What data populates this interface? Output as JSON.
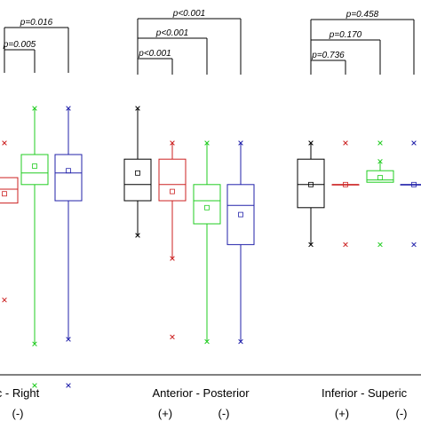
{
  "chart_data": {
    "type": "boxplot",
    "groups": [
      {
        "name": "Left - Right",
        "label": "c - Right",
        "signs": [
          "",
          "(-)"
        ],
        "boxes": [
          {
            "color": "#cc2222",
            "q1": 5.9,
            "median": 6.5,
            "q3": 7.0,
            "mean": 6.3,
            "whisker_low": null,
            "whisker_high": null,
            "outliers": [
              1.7,
              8.5
            ]
          },
          {
            "color": "#22cc22",
            "q1": 6.7,
            "median": 7.2,
            "q3": 8.0,
            "mean": 7.5,
            "whisker_low": -0.2,
            "whisker_high": 10.0,
            "outliers": [
              -2.0
            ]
          },
          {
            "color": "#2222aa",
            "q1": 6.0,
            "median": 7.2,
            "q3": 8.0,
            "mean": 7.3,
            "whisker_low": 0.0,
            "whisker_high": 10.0,
            "outliers": [
              -2.0
            ]
          }
        ],
        "brackets": [
          {
            "level": 1,
            "text": "p=0.005"
          },
          {
            "level": 2,
            "text": "p=0.016"
          }
        ]
      },
      {
        "name": "Anterior - Posterior",
        "label": "Anterior - Posterior",
        "signs": [
          "(+)",
          "(-)"
        ],
        "boxes": [
          {
            "color": "#000000",
            "q1": 6.0,
            "median": 6.7,
            "q3": 7.8,
            "mean": 7.2,
            "whisker_low": 4.5,
            "whisker_high": 10.0,
            "outliers": []
          },
          {
            "color": "#cc2222",
            "q1": 6.0,
            "median": 6.7,
            "q3": 7.8,
            "mean": 6.4,
            "whisker_low": 3.5,
            "whisker_high": 8.5,
            "outliers": [
              0.1
            ]
          },
          {
            "color": "#22cc22",
            "q1": 5.0,
            "median": 6.0,
            "q3": 6.7,
            "mean": 5.7,
            "whisker_low": -0.1,
            "whisker_high": 8.5,
            "outliers": [
              -4.1
            ]
          },
          {
            "color": "#2222aa",
            "q1": 4.1,
            "median": 5.8,
            "q3": 6.7,
            "mean": 5.4,
            "whisker_low": -0.1,
            "whisker_high": 8.5,
            "outliers": [
              -4.1
            ]
          }
        ],
        "brackets": [
          {
            "level": 1,
            "text": "p<0.001"
          },
          {
            "level": 2,
            "text": "p<0.001"
          },
          {
            "level": 3,
            "text": "p<0.001"
          }
        ]
      },
      {
        "name": "Inferior - Superior",
        "label": "Inferior - Superic",
        "signs": [
          "(+)",
          "(-)"
        ],
        "boxes": [
          {
            "color": "#000000",
            "q1": 5.7,
            "median": 6.7,
            "q3": 7.8,
            "mean": 6.7,
            "whisker_low": 4.1,
            "whisker_high": 8.5,
            "outliers": []
          },
          {
            "color": "#cc2222",
            "q1": 6.7,
            "median": 6.7,
            "q3": 6.7,
            "mean": 6.7,
            "whisker_low": null,
            "whisker_high": null,
            "outliers": [
              4.1,
              8.5
            ]
          },
          {
            "color": "#22cc22",
            "q1": 6.8,
            "median": 6.9,
            "q3": 7.3,
            "mean": 7.0,
            "whisker_low": null,
            "whisker_high": 7.7,
            "outliers": [
              4.1,
              8.5
            ]
          },
          {
            "color": "#2222aa",
            "q1": 6.7,
            "median": 6.7,
            "q3": 6.7,
            "mean": 6.7,
            "whisker_low": null,
            "whisker_high": null,
            "outliers": [
              4.1,
              8.5
            ]
          }
        ],
        "brackets": [
          {
            "level": 1,
            "text": "p=0.736"
          },
          {
            "level": 2,
            "text": "p=0.170"
          },
          {
            "level": 3,
            "text": "p=0.458"
          }
        ]
      }
    ]
  }
}
